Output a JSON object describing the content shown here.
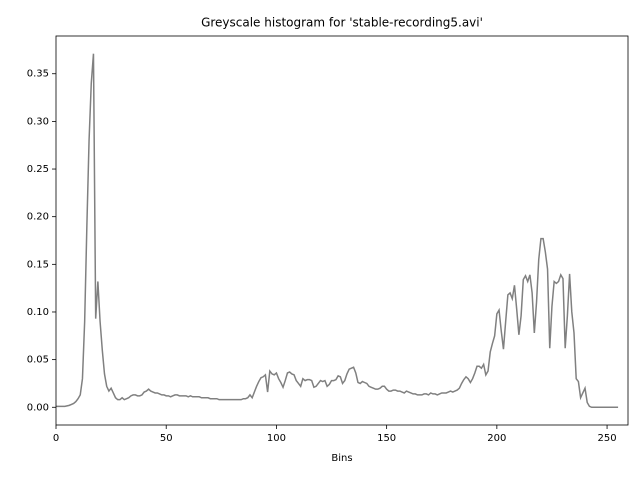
{
  "chart_data": {
    "type": "line",
    "title": "Greyscale histogram for 'stable-recording5.avi'",
    "x_label": "Bins",
    "x": [
      0,
      1,
      2,
      3,
      4,
      5,
      6,
      7,
      8,
      9,
      10,
      11,
      12,
      13,
      14,
      15,
      16,
      17,
      18,
      19,
      20,
      21,
      22,
      23,
      24,
      25,
      26,
      27,
      28,
      29,
      30,
      31,
      32,
      33,
      34,
      35,
      36,
      37,
      38,
      39,
      40,
      41,
      42,
      43,
      44,
      45,
      46,
      47,
      48,
      49,
      50,
      51,
      52,
      53,
      54,
      55,
      56,
      57,
      58,
      59,
      60,
      61,
      62,
      63,
      64,
      65,
      66,
      67,
      68,
      69,
      70,
      71,
      72,
      73,
      74,
      75,
      76,
      77,
      78,
      79,
      80,
      81,
      82,
      83,
      84,
      85,
      86,
      87,
      88,
      89,
      90,
      91,
      92,
      93,
      94,
      95,
      96,
      97,
      98,
      99,
      100,
      101,
      102,
      103,
      104,
      105,
      106,
      107,
      108,
      109,
      110,
      111,
      112,
      113,
      114,
      115,
      116,
      117,
      118,
      119,
      120,
      121,
      122,
      123,
      124,
      125,
      126,
      127,
      128,
      129,
      130,
      131,
      132,
      133,
      134,
      135,
      136,
      137,
      138,
      139,
      140,
      141,
      142,
      143,
      144,
      145,
      146,
      147,
      148,
      149,
      150,
      151,
      152,
      153,
      154,
      155,
      156,
      157,
      158,
      159,
      160,
      161,
      162,
      163,
      164,
      165,
      166,
      167,
      168,
      169,
      170,
      171,
      172,
      173,
      174,
      175,
      176,
      177,
      178,
      179,
      180,
      181,
      182,
      183,
      184,
      185,
      186,
      187,
      188,
      189,
      190,
      191,
      192,
      193,
      194,
      195,
      196,
      197,
      198,
      199,
      200,
      201,
      202,
      203,
      204,
      205,
      206,
      207,
      208,
      209,
      210,
      211,
      212,
      213,
      214,
      215,
      216,
      217,
      218,
      219,
      220,
      221,
      222,
      223,
      224,
      225,
      226,
      227,
      228,
      229,
      230,
      231,
      232,
      233,
      234,
      235,
      236,
      237,
      238,
      239,
      240,
      241,
      242,
      243,
      244,
      245,
      246,
      247,
      248,
      249,
      250,
      251,
      252,
      253,
      254,
      255
    ],
    "series": [
      {
        "color": "#808080",
        "values": [
          0.001,
          0.001,
          0.001,
          0.001,
          0.001,
          0.0015,
          0.002,
          0.003,
          0.004,
          0.006,
          0.009,
          0.013,
          0.03,
          0.09,
          0.19,
          0.28,
          0.34,
          0.371,
          0.093,
          0.132,
          0.09,
          0.06,
          0.035,
          0.022,
          0.017,
          0.02,
          0.015,
          0.01,
          0.008,
          0.008,
          0.01,
          0.008,
          0.009,
          0.01,
          0.012,
          0.013,
          0.013,
          0.012,
          0.012,
          0.013,
          0.016,
          0.017,
          0.019,
          0.017,
          0.016,
          0.015,
          0.015,
          0.014,
          0.013,
          0.013,
          0.012,
          0.012,
          0.011,
          0.012,
          0.013,
          0.013,
          0.012,
          0.012,
          0.012,
          0.012,
          0.011,
          0.012,
          0.011,
          0.011,
          0.011,
          0.011,
          0.01,
          0.01,
          0.01,
          0.01,
          0.009,
          0.009,
          0.009,
          0.009,
          0.008,
          0.008,
          0.008,
          0.008,
          0.008,
          0.008,
          0.008,
          0.008,
          0.008,
          0.008,
          0.008,
          0.009,
          0.009,
          0.01,
          0.013,
          0.01,
          0.016,
          0.022,
          0.027,
          0.031,
          0.032,
          0.034,
          0.016,
          0.038,
          0.035,
          0.034,
          0.036,
          0.03,
          0.026,
          0.021,
          0.028,
          0.036,
          0.037,
          0.035,
          0.034,
          0.028,
          0.025,
          0.022,
          0.03,
          0.028,
          0.029,
          0.029,
          0.028,
          0.021,
          0.022,
          0.025,
          0.028,
          0.027,
          0.028,
          0.022,
          0.024,
          0.028,
          0.028,
          0.029,
          0.033,
          0.032,
          0.025,
          0.028,
          0.035,
          0.04,
          0.041,
          0.042,
          0.036,
          0.026,
          0.025,
          0.027,
          0.026,
          0.025,
          0.022,
          0.021,
          0.02,
          0.019,
          0.019,
          0.02,
          0.022,
          0.022,
          0.019,
          0.017,
          0.017,
          0.018,
          0.018,
          0.017,
          0.017,
          0.016,
          0.015,
          0.017,
          0.016,
          0.015,
          0.014,
          0.014,
          0.013,
          0.013,
          0.013,
          0.014,
          0.014,
          0.013,
          0.015,
          0.014,
          0.014,
          0.013,
          0.014,
          0.015,
          0.015,
          0.015,
          0.016,
          0.017,
          0.016,
          0.017,
          0.018,
          0.02,
          0.025,
          0.029,
          0.032,
          0.03,
          0.026,
          0.03,
          0.036,
          0.043,
          0.043,
          0.041,
          0.045,
          0.034,
          0.038,
          0.058,
          0.067,
          0.075,
          0.098,
          0.102,
          0.08,
          0.061,
          0.09,
          0.118,
          0.12,
          0.114,
          0.128,
          0.103,
          0.076,
          0.096,
          0.134,
          0.138,
          0.132,
          0.139,
          0.12,
          0.078,
          0.11,
          0.155,
          0.177,
          0.177,
          0.163,
          0.145,
          0.062,
          0.106,
          0.132,
          0.13,
          0.132,
          0.139,
          0.135,
          0.062,
          0.096,
          0.14,
          0.1,
          0.078,
          0.03,
          0.027,
          0.01,
          0.015,
          0.02,
          0.005,
          0.001,
          0,
          0,
          0,
          0,
          0,
          0,
          0,
          0,
          0,
          0,
          0,
          0,
          0
        ]
      }
    ],
    "xlim": [
      0,
      259.5
    ],
    "xticks": [
      0,
      50,
      100,
      150,
      200,
      250
    ],
    "ylim": [
      -0.0186,
      0.3896
    ],
    "yticks": [
      {
        "value": 0,
        "label": "0.00"
      },
      {
        "value": 0.05,
        "label": "0.05"
      },
      {
        "value": 0.1,
        "label": "0.10"
      },
      {
        "value": 0.15,
        "label": "0.15"
      },
      {
        "value": 0.2,
        "label": "0.20"
      },
      {
        "value": 0.25,
        "label": "0.25"
      },
      {
        "value": 0.3,
        "label": "0.30"
      },
      {
        "value": 0.35,
        "label": "0.35"
      }
    ]
  }
}
